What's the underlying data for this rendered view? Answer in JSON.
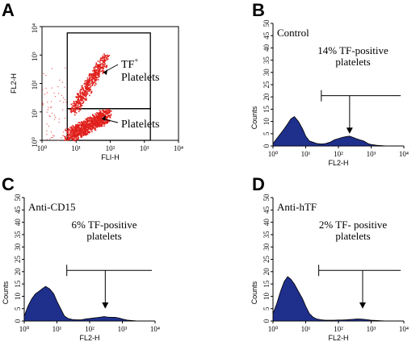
{
  "chart_data": [
    {
      "panel": "A",
      "type": "scatter",
      "xlabel": "FLI-H",
      "ylabel": "FL2-H",
      "x_ticks": [
        "10⁰",
        "10¹",
        "10²",
        "10³",
        "10⁴"
      ],
      "y_ticks": [
        "10⁰",
        "10¹",
        "10²",
        "10³",
        "10⁴"
      ],
      "xlim": [
        1,
        10000
      ],
      "ylim": [
        1,
        10000
      ],
      "scale": "log",
      "annotations": [
        {
          "text_main": "TF",
          "text_sup": "+",
          "text_line2": "Platelets"
        },
        {
          "text": "Platelets"
        }
      ],
      "gates": [
        {
          "x": [
            5.5,
            1500
          ],
          "y": [
            1,
            13
          ]
        },
        {
          "x": [
            5.5,
            1500
          ],
          "y": [
            13,
            6000
          ]
        }
      ],
      "populations": [
        {
          "name": "",
          "x_range": [
            6,
            80
          ],
          "y_range": [
            1,
            12
          ],
          "trend": "upward",
          "count": 900
        },
        {
          "name": "",
          "x_range": [
            8,
            70
          ],
          "y_range": [
            12,
            800
          ],
          "trend": "diagonal",
          "count": 500
        }
      ],
      "color": "#e0201c"
    },
    {
      "panel": "B",
      "type": "area",
      "title": "Control",
      "annotation": [
        "14% TF-positive",
        "platelets"
      ],
      "xlabel": "FL2-H",
      "ylabel": "Counts",
      "x_ticks": [
        "10⁰",
        "10¹",
        "10²",
        "10³",
        "10⁴"
      ],
      "y_ticks": [
        "0",
        "5",
        "10",
        "15",
        "20",
        "25",
        "30",
        "35",
        "40",
        "45",
        "50"
      ],
      "xlim": [
        1,
        10000
      ],
      "ylim": [
        0,
        50
      ],
      "marker_range": [
        30,
        8000
      ],
      "marker_level": 20.5,
      "arrow_x": 220,
      "x": [
        1,
        1.3,
        1.7,
        2.2,
        2.8,
        3.5,
        4.5,
        6,
        8,
        10,
        13,
        17,
        22,
        30,
        40,
        55,
        75,
        100,
        130,
        170,
        220,
        280,
        350,
        450,
        600,
        800,
        1000,
        1500,
        3000,
        10000
      ],
      "values": [
        1,
        3,
        5,
        7,
        9,
        11,
        12,
        10,
        7,
        4,
        2,
        1.5,
        1,
        0.8,
        1,
        1.5,
        2.5,
        3,
        3.5,
        3.8,
        4,
        3.5,
        3,
        2.5,
        2,
        1,
        0.6,
        0.3,
        0,
        0
      ],
      "color": "#1f2f8c"
    },
    {
      "panel": "C",
      "type": "area",
      "title": "Anti-CD15",
      "annotation": [
        "6% TF-positive",
        "platelets"
      ],
      "xlabel": "FL2-H",
      "ylabel": "Counts",
      "x_ticks": [
        "10⁰",
        "10¹",
        "10²",
        "10³",
        "10⁴"
      ],
      "y_ticks": [
        "0",
        "5",
        "10",
        "15",
        "20",
        "25",
        "30",
        "35",
        "40",
        "45",
        "50"
      ],
      "xlim": [
        1,
        10000
      ],
      "ylim": [
        0,
        50
      ],
      "marker_range": [
        20,
        8000
      ],
      "marker_level": 20.5,
      "arrow_x": 300,
      "x": [
        1,
        1.3,
        1.7,
        2.2,
        2.8,
        3.5,
        4.5,
        6,
        8,
        10,
        13,
        17,
        22,
        30,
        40,
        55,
        75,
        100,
        130,
        170,
        220,
        280,
        350,
        450,
        600,
        800,
        1000,
        1500,
        3000,
        10000
      ],
      "values": [
        2,
        6,
        9,
        11,
        12,
        13,
        14,
        13,
        11,
        8,
        5,
        2,
        1,
        0.6,
        0.5,
        0.5,
        0.8,
        1,
        1.2,
        1.4,
        1.6,
        1.8,
        1.6,
        1.5,
        1.5,
        1.2,
        0.8,
        0.3,
        0,
        0
      ],
      "color": "#1f2f8c"
    },
    {
      "panel": "D",
      "type": "area",
      "title": "Anti-hTF",
      "annotation": [
        "2% TF- positive",
        "platelets"
      ],
      "xlabel": "FL2-H",
      "ylabel": "Counts",
      "x_ticks": [
        "10⁰",
        "10¹",
        "10²",
        "10³",
        "10⁴"
      ],
      "y_ticks": [
        "0",
        "5",
        "10",
        "15",
        "20",
        "25",
        "30",
        "35",
        "40",
        "45",
        "50"
      ],
      "xlim": [
        1,
        10000
      ],
      "ylim": [
        0,
        50
      ],
      "marker_range": [
        25,
        8000
      ],
      "marker_level": 20.5,
      "arrow_x": 550,
      "x": [
        1,
        1.3,
        1.7,
        2.2,
        2.8,
        3.5,
        4.5,
        6,
        8,
        10,
        13,
        17,
        22,
        30,
        40,
        55,
        75,
        100,
        130,
        170,
        220,
        280,
        350,
        450,
        600,
        800,
        1000,
        1500,
        3000,
        10000
      ],
      "values": [
        3,
        7,
        12,
        16,
        18,
        17,
        15,
        12,
        9,
        6,
        3,
        1.5,
        0.8,
        0.5,
        0.3,
        0.3,
        0.3,
        0.4,
        0.4,
        0.5,
        0.6,
        0.7,
        0.8,
        0.8,
        0.7,
        0.5,
        0.3,
        0.2,
        0,
        0
      ],
      "color": "#1f2f8c"
    }
  ]
}
